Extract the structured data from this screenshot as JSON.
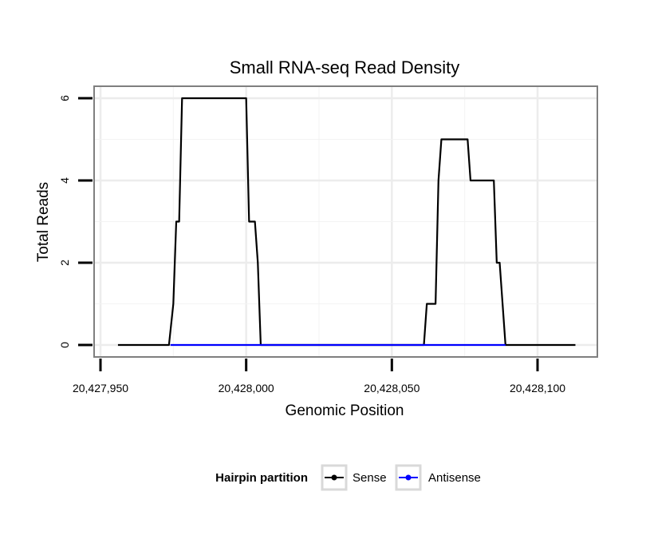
{
  "chart_data": {
    "type": "line",
    "title": "Small RNA-seq Read Density",
    "xlabel": "Genomic Position",
    "ylabel": "Total Reads",
    "xlim": [
      20427950,
      20428119
    ],
    "ylim": [
      -0.2,
      6.3
    ],
    "x_ticks": [
      20427950,
      20428000,
      20428050,
      20428100
    ],
    "x_tick_labels": [
      "20,427,950",
      "20,428,000",
      "20,428,050",
      "20,428,100"
    ],
    "y_ticks": [
      0,
      2,
      4,
      6
    ],
    "y_tick_labels": [
      "0",
      "2",
      "4",
      "6"
    ],
    "grid": true,
    "legend": {
      "title": "Hairpin partition",
      "position": "bottom",
      "entries": [
        "Sense",
        "Antisense"
      ]
    },
    "series": [
      {
        "name": "Sense",
        "color": "#000000",
        "x": [
          20427956,
          20427973.5,
          20427975,
          20427976,
          20427977,
          20427978,
          20428000,
          20428001,
          20428003,
          20428004,
          20428005,
          20428061,
          20428062,
          20428065,
          20428066,
          20428067,
          20428076,
          20428077,
          20428085,
          20428086,
          20428087,
          20428089,
          20428113
        ],
        "values": [
          0,
          0,
          1,
          3,
          3,
          6,
          6,
          3,
          3,
          2,
          0,
          0,
          1,
          1,
          4,
          5,
          5,
          4,
          4,
          2,
          2,
          0,
          0
        ]
      },
      {
        "name": "Antisense",
        "color": "#0000ff",
        "x": [
          20427974,
          20428005,
          20428061,
          20428089
        ],
        "values": [
          0,
          0,
          0,
          0
        ]
      }
    ]
  }
}
